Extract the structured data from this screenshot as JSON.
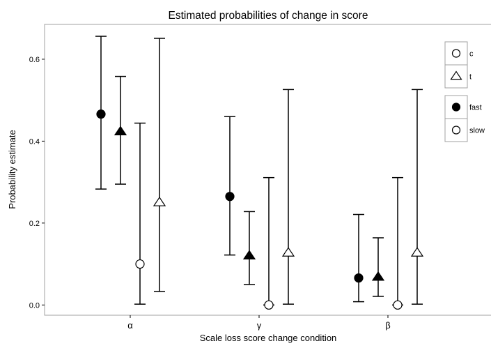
{
  "chart_data": {
    "type": "scatter",
    "title": "Estimated probabilities of change in score",
    "xlabel": "Scale loss score change condition",
    "ylabel": "Probability estimate",
    "categories": [
      "α",
      "γ",
      "β"
    ],
    "ylim": [
      -0.025,
      0.685
    ],
    "yticks": [
      0.0,
      0.2,
      0.4,
      0.6
    ],
    "ytick_labels": [
      "0.0",
      "0.2",
      "0.4",
      "0.6"
    ],
    "grid": false,
    "legend_position": "top-right",
    "legend": {
      "shape_entries": [
        {
          "label": "c",
          "shape": "circle"
        },
        {
          "label": "t",
          "shape": "triangle"
        }
      ],
      "fill_entries": [
        {
          "label": "fast",
          "fill": "filled"
        },
        {
          "label": "slow",
          "fill": "open"
        }
      ]
    },
    "series": [
      {
        "shape": "circle",
        "fill": "filled",
        "values": [
          0.466,
          0.265,
          0.066
        ],
        "lower": [
          0.283,
          0.122,
          0.008
        ],
        "upper": [
          0.656,
          0.46,
          0.221
        ]
      },
      {
        "shape": "triangle",
        "fill": "filled",
        "values": [
          0.423,
          0.12,
          0.068
        ],
        "lower": [
          0.295,
          0.05,
          0.021
        ],
        "upper": [
          0.558,
          0.228,
          0.164
        ]
      },
      {
        "shape": "circle",
        "fill": "open",
        "values": [
          0.1,
          0.0,
          0.0
        ],
        "lower": [
          0.002,
          0.0,
          0.0
        ],
        "upper": [
          0.444,
          0.311,
          0.311
        ]
      },
      {
        "shape": "triangle",
        "fill": "open",
        "values": [
          0.25,
          0.127,
          0.127
        ],
        "lower": [
          0.033,
          0.002,
          0.002
        ],
        "upper": [
          0.651,
          0.526,
          0.526
        ]
      }
    ],
    "colors": {
      "marker": "#000000",
      "open_fill": "#ffffff",
      "axis": "#000000",
      "panel_border": "#a0a0a0"
    }
  }
}
